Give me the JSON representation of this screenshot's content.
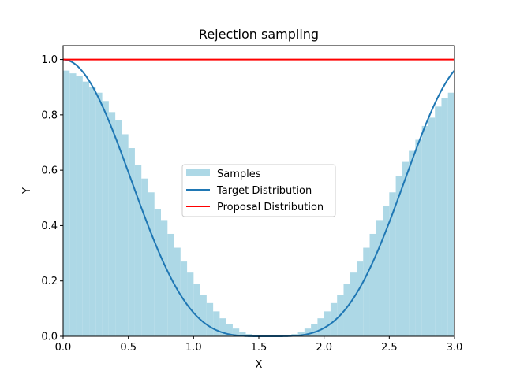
{
  "chart_data": {
    "type": "bar",
    "title": "Rejection sampling",
    "xlabel": "X",
    "ylabel": "Y",
    "xlim": [
      0,
      3
    ],
    "ylim": [
      0,
      1.05
    ],
    "xticks": [
      "0.0",
      "0.5",
      "1.0",
      "1.5",
      "2.0",
      "2.5",
      "3.0"
    ],
    "yticks": [
      "0.0",
      "0.2",
      "0.4",
      "0.6",
      "0.8",
      "1.0"
    ],
    "grid": false,
    "legend_position": "center",
    "legend": [
      "Samples",
      "Target Distribution",
      "Proposal Distribution"
    ],
    "colors": {
      "samples": "#add8e6",
      "target": "#1f77b4",
      "proposal": "#ff0000"
    },
    "series": [
      {
        "name": "Samples",
        "type": "histogram",
        "bin_edges": [
          0.0,
          0.05,
          0.1,
          0.15,
          0.2,
          0.25,
          0.3,
          0.35,
          0.4,
          0.45,
          0.5,
          0.55,
          0.6,
          0.65,
          0.7,
          0.75,
          0.8,
          0.85,
          0.9,
          0.95,
          1.0,
          1.05,
          1.1,
          1.15,
          1.2,
          1.25,
          1.3,
          1.35,
          1.4,
          1.45,
          1.5,
          1.55,
          1.6,
          1.65,
          1.7,
          1.75,
          1.8,
          1.85,
          1.9,
          1.95,
          2.0,
          2.05,
          2.1,
          2.15,
          2.2,
          2.25,
          2.3,
          2.35,
          2.4,
          2.45,
          2.5,
          2.55,
          2.6,
          2.65,
          2.7,
          2.75,
          2.8,
          2.85,
          2.9,
          2.95,
          3.0
        ],
        "values": [
          0.96,
          0.95,
          0.94,
          0.92,
          0.9,
          0.88,
          0.85,
          0.81,
          0.78,
          0.73,
          0.68,
          0.62,
          0.57,
          0.52,
          0.46,
          0.42,
          0.37,
          0.32,
          0.27,
          0.23,
          0.19,
          0.15,
          0.12,
          0.09,
          0.065,
          0.045,
          0.028,
          0.016,
          0.008,
          0.003,
          0.001,
          0.0,
          0.0,
          0.001,
          0.003,
          0.008,
          0.016,
          0.028,
          0.045,
          0.065,
          0.09,
          0.12,
          0.15,
          0.19,
          0.23,
          0.27,
          0.32,
          0.37,
          0.42,
          0.47,
          0.52,
          0.58,
          0.63,
          0.67,
          0.71,
          0.76,
          0.79,
          0.83,
          0.86,
          0.88,
          0.91
        ]
      },
      {
        "name": "Target Distribution",
        "type": "line",
        "function": "cos(x)^4",
        "x_range": [
          0,
          3
        ]
      },
      {
        "name": "Proposal Distribution",
        "type": "line",
        "x": [
          0,
          3
        ],
        "y": [
          1.0,
          1.0
        ]
      }
    ]
  }
}
